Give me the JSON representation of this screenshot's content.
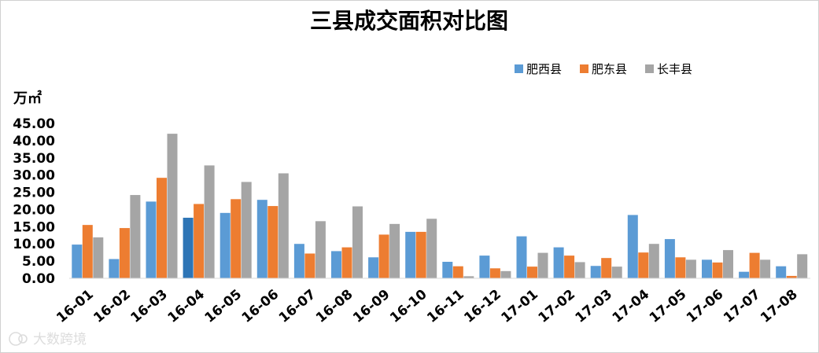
{
  "chart_data": {
    "type": "bar",
    "title": "三县成交面积对比图",
    "ylabel": "万㎡",
    "xlabel": "",
    "ylim": [
      0,
      45
    ],
    "yticks": [
      "0.00",
      "5.00",
      "10.00",
      "15.00",
      "20.00",
      "25.00",
      "30.00",
      "35.00",
      "40.00",
      "45.00"
    ],
    "categories": [
      "16-01",
      "16-02",
      "16-03",
      "16-04",
      "16-05",
      "16-06",
      "16-07",
      "16-08",
      "16-09",
      "16-10",
      "16-11",
      "16-12",
      "17-01",
      "17-02",
      "17-03",
      "17-04",
      "17-05",
      "17-06",
      "17-07",
      "17-08"
    ],
    "series": [
      {
        "name": "肥西县",
        "color": "#5b9bd5",
        "values": [
          9.8,
          5.6,
          22.3,
          17.6,
          19.0,
          22.8,
          10.0,
          7.9,
          6.1,
          13.5,
          4.8,
          6.6,
          12.2,
          9.0,
          3.6,
          18.4,
          11.4,
          5.4,
          1.9,
          3.5
        ]
      },
      {
        "name": "肥东县",
        "color": "#ed7d31",
        "values": [
          15.5,
          14.6,
          29.2,
          21.6,
          23.0,
          21.0,
          7.2,
          9.0,
          12.7,
          13.5,
          3.5,
          2.9,
          3.4,
          6.6,
          5.9,
          7.5,
          6.1,
          4.6,
          7.4,
          0.7
        ]
      },
      {
        "name": "长丰县",
        "color": "#a5a5a5",
        "values": [
          11.9,
          24.2,
          42.0,
          32.8,
          28.0,
          30.5,
          16.6,
          20.9,
          15.8,
          17.3,
          0.6,
          2.1,
          7.4,
          4.7,
          3.4,
          10.0,
          5.4,
          8.2,
          5.4,
          7.0
        ]
      }
    ],
    "highlight": {
      "category_index": 3,
      "series_index": 0,
      "color": "#2e75b6"
    },
    "grid": false,
    "legend_position": "top-right"
  },
  "watermark": {
    "text": "大数跨境",
    "icon": "logo-icon"
  }
}
